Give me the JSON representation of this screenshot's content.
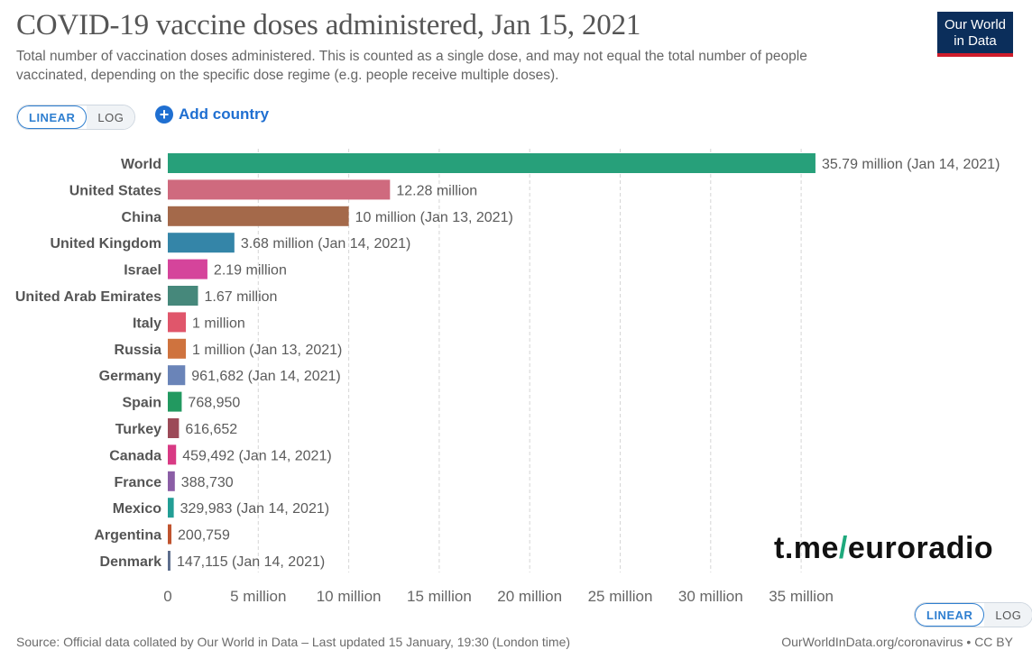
{
  "header": {
    "title": "COVID-19 vaccine doses administered, Jan 15, 2021",
    "subtitle": "Total number of vaccination doses administered. This is counted as a single dose, and may not equal the total number of people vaccinated, depending on the specific dose regime (e.g. people receive multiple doses).",
    "logo_line1": "Our World",
    "logo_line2": "in Data"
  },
  "controls": {
    "scale_linear": "LINEAR",
    "scale_log": "LOG",
    "add_country": "Add country",
    "bottom_linear": "LINEAR",
    "bottom_log": "LOG"
  },
  "watermark": {
    "prefix": "t.me",
    "slash": "/",
    "suffix": "euroradio"
  },
  "footer": {
    "source": "Source: Official data collated by Our World in Data – Last updated 15 January, 19:30 (London time)",
    "credit": "OurWorldInData.org/coronavirus • CC BY"
  },
  "chart_data": {
    "type": "bar",
    "orientation": "horizontal",
    "xlabel": "",
    "ylabel": "",
    "xlim": [
      0,
      36000000
    ],
    "grid": true,
    "x_ticks": [
      {
        "value": 0,
        "label": "0"
      },
      {
        "value": 5000000,
        "label": "5 million"
      },
      {
        "value": 10000000,
        "label": "10 million"
      },
      {
        "value": 15000000,
        "label": "15 million"
      },
      {
        "value": 20000000,
        "label": "20 million"
      },
      {
        "value": 25000000,
        "label": "25 million"
      },
      {
        "value": 30000000,
        "label": "30 million"
      },
      {
        "value": 35000000,
        "label": "35 million"
      }
    ],
    "bars": [
      {
        "category": "World",
        "value": 35790000,
        "label": "35.79 million (Jan 14, 2021)",
        "color": "#27a07a"
      },
      {
        "category": "United States",
        "value": 12280000,
        "label": "12.28 million",
        "color": "#cf6a7e"
      },
      {
        "category": "China",
        "value": 10000000,
        "label": "10 million (Jan 13, 2021)",
        "color": "#a4694a"
      },
      {
        "category": "United Kingdom",
        "value": 3680000,
        "label": "3.68 million (Jan 14, 2021)",
        "color": "#3485a8"
      },
      {
        "category": "Israel",
        "value": 2190000,
        "label": "2.19 million",
        "color": "#d5449b"
      },
      {
        "category": "United Arab Emirates",
        "value": 1670000,
        "label": "1.67 million",
        "color": "#46887b"
      },
      {
        "category": "Italy",
        "value": 1000000,
        "label": "1 million",
        "color": "#e0566b"
      },
      {
        "category": "Russia",
        "value": 1000000,
        "label": "1 million (Jan 13, 2021)",
        "color": "#cf733e"
      },
      {
        "category": "Germany",
        "value": 961682,
        "label": "961,682 (Jan 14, 2021)",
        "color": "#6a84b8"
      },
      {
        "category": "Spain",
        "value": 768950,
        "label": "768,950",
        "color": "#229960"
      },
      {
        "category": "Turkey",
        "value": 616652,
        "label": "616,652",
        "color": "#9c4a58"
      },
      {
        "category": "Canada",
        "value": 459492,
        "label": "459,492 (Jan 14, 2021)",
        "color": "#d83a84"
      },
      {
        "category": "France",
        "value": 388730,
        "label": "388,730",
        "color": "#8b5ea6"
      },
      {
        "category": "Mexico",
        "value": 329983,
        "label": "329,983 (Jan 14, 2021)",
        "color": "#229e95"
      },
      {
        "category": "Argentina",
        "value": 200759,
        "label": "200,759",
        "color": "#c0542f"
      },
      {
        "category": "Denmark",
        "value": 147115,
        "label": "147,115 (Jan 14, 2021)",
        "color": "#5c6d8c"
      }
    ]
  }
}
